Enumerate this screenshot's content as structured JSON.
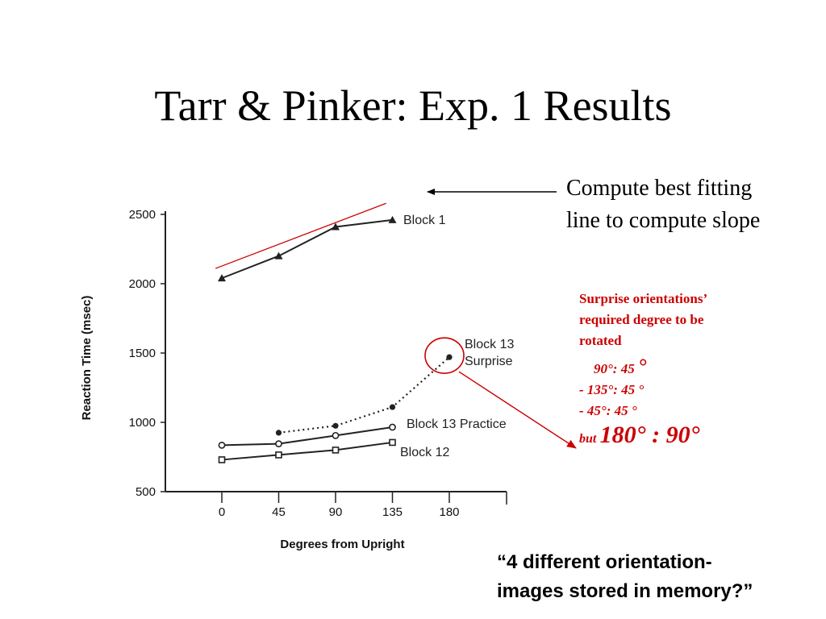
{
  "slide": {
    "title": "Tarr & Pinker: Exp. 1 Results",
    "annotation_compute": [
      "Compute best fitting",
      "line to compute slope"
    ],
    "surprise_note": {
      "heading": [
        "Surprise orientations’",
        "required degree to be",
        "rotated"
      ],
      "lines": [
        {
          "text": "90°: 45 ",
          "big": "°"
        },
        {
          "text": "- 135°: 45 °"
        },
        {
          "text": "- 45°: 45 °"
        }
      ],
      "but_word": "but",
      "but_value": "180° : 90°"
    },
    "quote": [
      "“4 different orientation-",
      "images stored in memory?”"
    ],
    "colors": {
      "accent": "#cc0000",
      "text": "#000000",
      "chart_ink": "#222222"
    }
  },
  "chart_data": {
    "type": "line",
    "title": "",
    "xlabel": "Degrees from Upright",
    "ylabel": "Reaction  Time  (msec)",
    "x": [
      0,
      45,
      90,
      135,
      180
    ],
    "xticks": [
      "0",
      "45",
      "90",
      "135",
      "180"
    ],
    "yticks": [
      "500",
      "1000",
      "1500",
      "2000",
      "2500"
    ],
    "xlim": [
      0,
      180
    ],
    "ylim": [
      500,
      2500
    ],
    "grid": false,
    "series": [
      {
        "name": "Block 1",
        "marker": "triangle",
        "style": "solid",
        "x": [
          0,
          45,
          90,
          135
        ],
        "values": [
          2040,
          2200,
          2410,
          2460
        ],
        "label_lines": [
          "Block 1"
        ]
      },
      {
        "name": "Block 13 Surprise",
        "marker": "dot",
        "style": "dotted",
        "x": [
          45,
          90,
          135,
          180
        ],
        "values": [
          925,
          975,
          1110,
          1470
        ],
        "label_lines": [
          "Block 13",
          "Surprise"
        ]
      },
      {
        "name": "Block 13 Practice",
        "marker": "circle",
        "style": "solid",
        "x": [
          0,
          45,
          90,
          135
        ],
        "values": [
          835,
          845,
          905,
          965
        ],
        "label_lines": [
          "Block 13 Practice"
        ]
      },
      {
        "name": "Block 12",
        "marker": "square",
        "style": "solid",
        "x": [
          0,
          45,
          90,
          135
        ],
        "values": [
          730,
          765,
          800,
          855
        ],
        "label_lines": [
          "Block 12"
        ]
      }
    ],
    "best_fit_line": {
      "x": [
        -5,
        130
      ],
      "values": [
        2110,
        2580
      ],
      "color": "#cc0000"
    },
    "highlight": {
      "series": "Block 13 Surprise",
      "x": 180,
      "value": 1470,
      "color": "#cc0000"
    }
  }
}
